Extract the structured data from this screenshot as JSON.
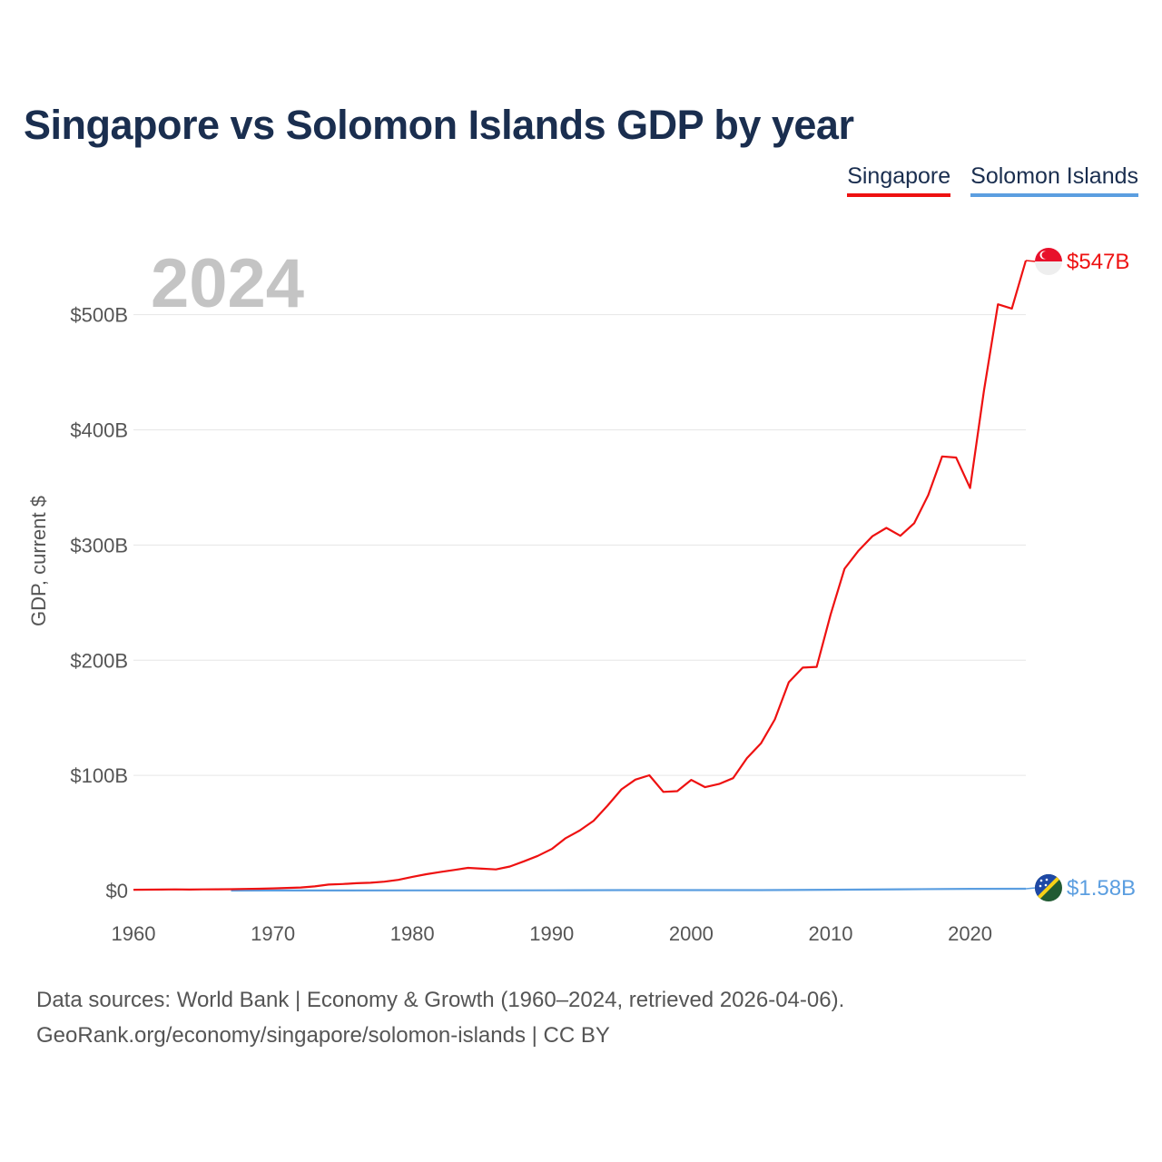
{
  "title": "Singapore vs Solomon Islands GDP by year",
  "legend": {
    "singapore": "Singapore",
    "solomon": "Solomon Islands"
  },
  "colors": {
    "singapore": "#ee1111",
    "solomon": "#5b9ee0",
    "title": "#1a2e4f"
  },
  "footer": {
    "line1": "Data sources: World Bank | Economy & Growth (1960–2024, retrieved 2026-04-06).",
    "line2": "GeoRank.org/economy/singapore/solomon-islands | CC BY"
  },
  "chart_data": {
    "type": "line",
    "title": "Singapore vs Solomon Islands GDP by year",
    "xlabel": "",
    "ylabel": "GDP, current $",
    "current_year": "2024",
    "xlim": [
      1960,
      2024
    ],
    "ylim": [
      0,
      547
    ],
    "x_ticks": [
      1960,
      1970,
      1980,
      1990,
      2000,
      2010,
      2020
    ],
    "y_ticks": [
      0,
      100,
      200,
      300,
      400,
      500
    ],
    "y_tick_labels": [
      "$0",
      "$100B",
      "$200B",
      "$300B",
      "$400B",
      "$500B"
    ],
    "grid": true,
    "legend_position": "top-right",
    "series": [
      {
        "name": "Singapore",
        "color": "#ee1111",
        "end_label": "$547B",
        "flag": "singapore-flag-icon",
        "x": [
          1960,
          1961,
          1962,
          1963,
          1964,
          1965,
          1966,
          1967,
          1968,
          1969,
          1970,
          1971,
          1972,
          1973,
          1974,
          1975,
          1976,
          1977,
          1978,
          1979,
          1980,
          1981,
          1982,
          1983,
          1984,
          1985,
          1986,
          1987,
          1988,
          1989,
          1990,
          1991,
          1992,
          1993,
          1994,
          1995,
          1996,
          1997,
          1998,
          1999,
          2000,
          2001,
          2002,
          2003,
          2004,
          2005,
          2006,
          2007,
          2008,
          2009,
          2010,
          2011,
          2012,
          2013,
          2014,
          2015,
          2016,
          2017,
          2018,
          2019,
          2020,
          2021,
          2022,
          2023,
          2024
        ],
        "values": [
          0.7,
          0.8,
          0.9,
          1.0,
          0.9,
          1.0,
          1.1,
          1.2,
          1.4,
          1.6,
          1.9,
          2.3,
          2.7,
          3.6,
          5.2,
          5.7,
          6.4,
          6.8,
          7.7,
          9.3,
          11.9,
          14.2,
          16.1,
          17.9,
          19.7,
          19.0,
          18.4,
          20.9,
          25.4,
          30.1,
          36.1,
          45.5,
          52.1,
          60.6,
          73.7,
          87.9,
          96.3,
          100.1,
          85.7,
          86.3,
          96.1,
          89.8,
          92.5,
          97.6,
          115.0,
          127.8,
          148.6,
          180.9,
          193.6,
          194.2,
          239.8,
          279.4,
          295.1,
          307.6,
          314.9,
          308.0,
          319.0,
          343.3,
          376.9,
          376.0,
          349.5,
          434.1,
          509.0,
          505.3,
          547.0
        ]
      },
      {
        "name": "Solomon Islands",
        "color": "#5b9ee0",
        "end_label": "$1.58B",
        "flag": "solomon-islands-flag-icon",
        "x": [
          1967,
          1970,
          1975,
          1980,
          1985,
          1990,
          1995,
          2000,
          2005,
          2010,
          2015,
          2020,
          2024
        ],
        "values": [
          0.03,
          0.05,
          0.1,
          0.12,
          0.16,
          0.2,
          0.4,
          0.4,
          0.4,
          0.7,
          1.1,
          1.5,
          1.58
        ]
      }
    ]
  }
}
